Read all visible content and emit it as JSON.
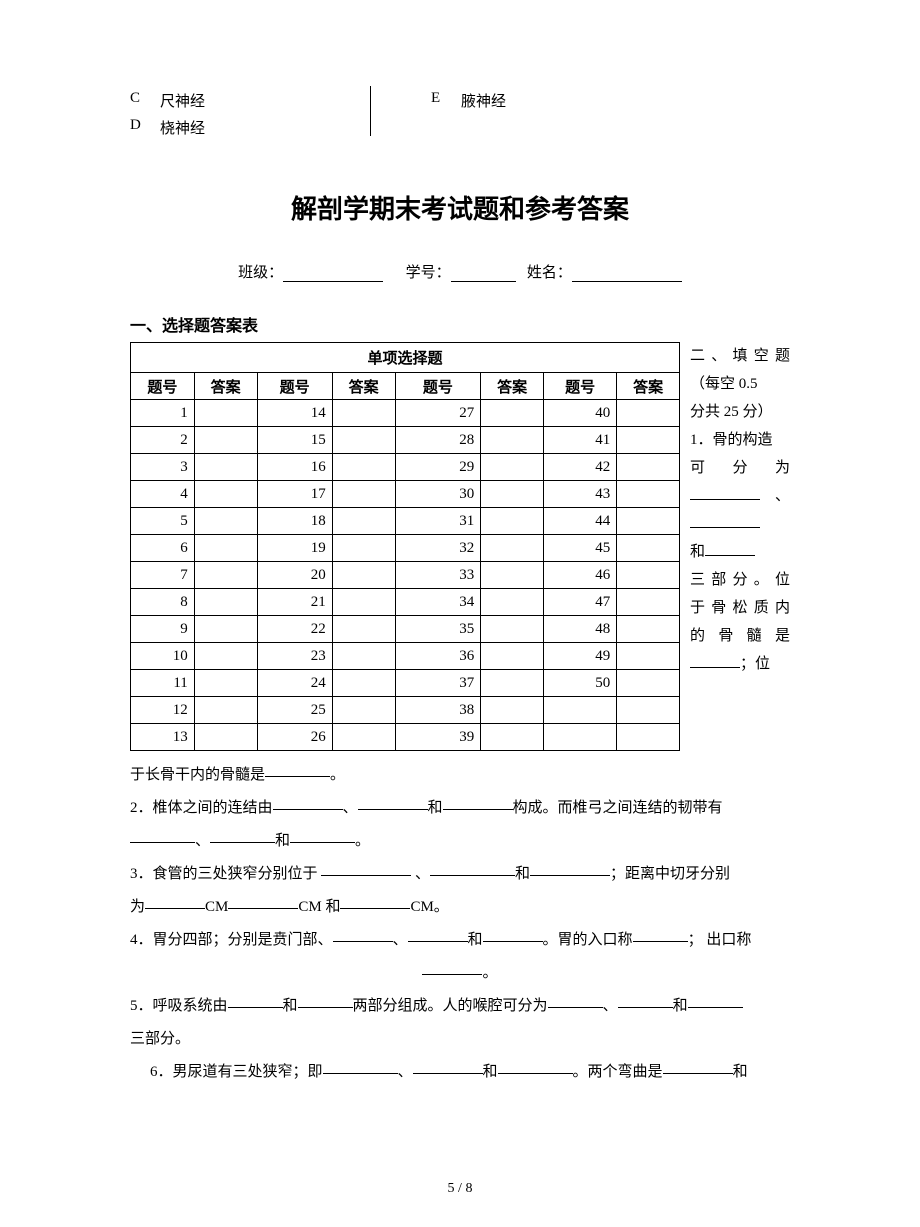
{
  "top_options": {
    "left": [
      {
        "letter": "C",
        "text": "尺神经"
      },
      {
        "letter": "D",
        "text": "桡神经"
      }
    ],
    "right": [
      {
        "letter": "E",
        "text": "腋神经"
      }
    ]
  },
  "title": "解剖学期末考试题和参考答案",
  "info": {
    "class_label": "班级：",
    "id_label": "学号：",
    "name_label": "姓名："
  },
  "section1_title": "一、选择题答案表",
  "table": {
    "title": "单项选择题",
    "headers": [
      "题号",
      "答案",
      "题号",
      "答案",
      "题号",
      "答案",
      "题号",
      "答案"
    ],
    "rows": [
      [
        "1",
        "",
        "14",
        "",
        "27",
        "",
        "40",
        ""
      ],
      [
        "2",
        "",
        "15",
        "",
        "28",
        "",
        "41",
        ""
      ],
      [
        "3",
        "",
        "16",
        "",
        "29",
        "",
        "42",
        ""
      ],
      [
        "4",
        "",
        "17",
        "",
        "30",
        "",
        "43",
        ""
      ],
      [
        "5",
        "",
        "18",
        "",
        "31",
        "",
        "44",
        ""
      ],
      [
        "6",
        "",
        "19",
        "",
        "32",
        "",
        "45",
        ""
      ],
      [
        "7",
        "",
        "20",
        "",
        "33",
        "",
        "46",
        ""
      ],
      [
        "8",
        "",
        "21",
        "",
        "34",
        "",
        "47",
        ""
      ],
      [
        "9",
        "",
        "22",
        "",
        "35",
        "",
        "48",
        ""
      ],
      [
        "10",
        "",
        "23",
        "",
        "36",
        "",
        "49",
        ""
      ],
      [
        "11",
        "",
        "24",
        "",
        "37",
        "",
        "50",
        ""
      ],
      [
        "12",
        "",
        "25",
        "",
        "38",
        "",
        "",
        ""
      ],
      [
        "13",
        "",
        "26",
        "",
        "39",
        "",
        "",
        ""
      ]
    ]
  },
  "side": {
    "section2_title": "二、填空题",
    "scoring": "（每空 0.5",
    "scoring2": "分共 25 分）",
    "q1_start": "1．骨的构造",
    "q1_l2a": "可",
    "q1_l2b": "分",
    "q1_l2c": "为",
    "q1_l3": "、",
    "q1_l4": "和",
    "q1_l5a": "三 部 分 。 位",
    "q1_l6": "于 骨 松 质 内",
    "q1_l7a": "的",
    "q1_l7b": "骨",
    "q1_l7c": "髓",
    "q1_l7d": "是",
    "q1_l8": "；位"
  },
  "q1_bottom": "于长骨干内的骨髓是",
  "q1_end": "。",
  "q2": {
    "t1": "2．椎体之间的连结由",
    "t2": "、",
    "t3": "和",
    "t4": "构成。而椎弓之间连结的韧带有",
    "t5": "、",
    "t6": "和",
    "t7": "。"
  },
  "q3": {
    "t1": "3．食管的三处狭窄分别位于",
    "t2": "、",
    "t3": "和",
    "t4": "；距离中切牙分别",
    "t5": "为",
    "t6": "CM",
    "t7": "CM 和",
    "t8": "CM。"
  },
  "q4": {
    "t1": "4．胃分四部；分别是贲门部、",
    "t2": "、",
    "t3": "和",
    "t4": "。胃的入口称",
    "t5": "； 出口称",
    "t6": "。"
  },
  "q5": {
    "t1": "5．呼吸系统由",
    "t2": "和",
    "t3": "两部分组成。人的喉腔可分为",
    "t4": "、",
    "t5": "和",
    "t6": "三部分。"
  },
  "q6": {
    "t1": "6．男尿道有三处狭窄；即",
    "t2": "、",
    "t3": "和",
    "t4": "。两个弯曲是",
    "t5": "和"
  },
  "footer": {
    "page": "5",
    "sep": " / ",
    "total": "8"
  }
}
